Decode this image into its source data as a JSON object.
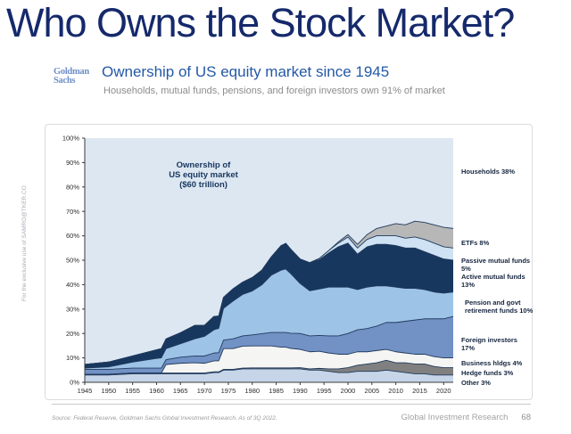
{
  "page": {
    "title": "Who Owns the Stock Market?",
    "header": {
      "logo_line1": "Goldman",
      "logo_line2": "Sachs",
      "heading": "Ownership of US equity market since 1945",
      "subheading": "Households, mutual funds, pensions, and foreign investors own 91% of market"
    },
    "watermark": "For the exclusive use of SAMRO@TKER.CO",
    "footer": {
      "source": "Source: Federal Reserve, Goldman Sachs Global Investment Research. As of 3Q 2022.",
      "brand": "Global Investment Research",
      "page_number": "68"
    }
  },
  "chart_data": {
    "type": "area",
    "stacked": true,
    "title_annotation": [
      "Ownership of",
      "US equity market",
      "($60 trillion)"
    ],
    "x": [
      1945,
      1950,
      1955,
      1960,
      1961,
      1962,
      1965,
      1968,
      1970,
      1972,
      1973,
      1974,
      1976,
      1978,
      1980,
      1982,
      1984,
      1986,
      1987,
      1988,
      1990,
      1992,
      1994,
      1996,
      1998,
      2000,
      2002,
      2004,
      2006,
      2008,
      2010,
      2012,
      2014,
      2016,
      2018,
      2020,
      2022
    ],
    "x_ticks": [
      {
        "value": 1945,
        "label": "1945"
      },
      {
        "value": 1950,
        "label": "1950"
      },
      {
        "value": 1955,
        "label": "1955"
      },
      {
        "value": 1960,
        "label": "1960"
      },
      {
        "value": 1965,
        "label": "1965"
      },
      {
        "value": 1970,
        "label": "1970"
      },
      {
        "value": 1975,
        "label": "1975"
      },
      {
        "value": 1980,
        "label": "1980"
      },
      {
        "value": 1985,
        "label": "1985"
      },
      {
        "value": 1990,
        "label": "1990"
      },
      {
        "value": 1995,
        "label": "1995"
      },
      {
        "value": 2000,
        "label": "2000"
      },
      {
        "value": 2005,
        "label": "2005"
      },
      {
        "value": 2010,
        "label": "2010"
      },
      {
        "value": 2015,
        "label": "2015"
      },
      {
        "value": 2020,
        "label": "2020"
      }
    ],
    "y_ticks": [
      {
        "value": 0,
        "label": "0%"
      },
      {
        "value": 10,
        "label": "10%"
      },
      {
        "value": 20,
        "label": "20%"
      },
      {
        "value": 30,
        "label": "30%"
      },
      {
        "value": 40,
        "label": "40%"
      },
      {
        "value": 50,
        "label": "50%"
      },
      {
        "value": 60,
        "label": "60%"
      },
      {
        "value": 70,
        "label": "70%"
      },
      {
        "value": 80,
        "label": "80%"
      },
      {
        "value": 90,
        "label": "90%"
      },
      {
        "value": 100,
        "label": "100%"
      }
    ],
    "y_axis": {
      "min": 0,
      "max": 100,
      "unit": "%"
    },
    "legend_position": "right",
    "grid": false,
    "outline_color": "#203a5c",
    "background_series": {
      "name": "Households",
      "label": "Households 38%",
      "share_2022": 38,
      "color": "#dde7f2"
    },
    "series": [
      {
        "name": "Other",
        "label": "Other 3%",
        "share_2022": 3,
        "color": "#c7d5e9",
        "values": [
          3,
          3,
          3.5,
          3.5,
          3.5,
          3.5,
          3.5,
          3.5,
          3.5,
          4,
          4,
          5,
          5,
          5.5,
          5.5,
          5.5,
          5.5,
          5.5,
          5.5,
          5.5,
          5.5,
          5,
          5,
          4.5,
          4,
          4,
          4.5,
          4.5,
          4.5,
          5,
          4.5,
          4,
          3.5,
          3.5,
          3,
          3,
          3
        ]
      },
      {
        "name": "Hedge funds",
        "label": "Hedge funds 3%",
        "share_2022": 3,
        "color": "#808080",
        "values": [
          0.3,
          0.3,
          0.3,
          0.3,
          0.3,
          0.3,
          0.3,
          0.3,
          0.3,
          0.3,
          0.3,
          0.3,
          0.3,
          0.3,
          0.4,
          0.4,
          0.4,
          0.4,
          0.4,
          0.4,
          0.5,
          0.5,
          0.7,
          1,
          1.5,
          2,
          2.5,
          3,
          3.5,
          4,
          3.5,
          4,
          4,
          4,
          3.5,
          3,
          3
        ]
      },
      {
        "name": "Business hldgs",
        "label": "Business hldgs 4%",
        "share_2022": 4,
        "color": "#f5f5f3",
        "values": [
          0,
          0,
          0,
          0,
          0,
          3.5,
          4,
          4.2,
          4,
          4.5,
          4.5,
          8.5,
          8.5,
          9,
          9,
          9,
          9,
          8.5,
          8.5,
          8,
          7.5,
          7,
          7,
          6.5,
          6,
          5.5,
          5.5,
          5,
          5,
          4.5,
          4.5,
          4,
          4,
          4,
          4,
          4,
          4
        ]
      },
      {
        "name": "Foreign investors",
        "label": "Foreign investors 17%",
        "share_2022": 17,
        "color": "#7291c5",
        "values": [
          2,
          2,
          2,
          2,
          2,
          2,
          2.5,
          2.8,
          3,
          3.2,
          3.3,
          3.5,
          4,
          4.2,
          4.5,
          5,
          5.5,
          6,
          6,
          6.2,
          6.5,
          6.5,
          6.5,
          7,
          7.5,
          8.5,
          9,
          9.5,
          10,
          11,
          12,
          13,
          14,
          14.5,
          15.5,
          16,
          17
        ]
      },
      {
        "name": "Pension and govt retirement funds",
        "label": "Pension and govt retirement funds 10%",
        "share_2022": 10,
        "color": "#9dc3e6",
        "values": [
          0.5,
          1,
          2.5,
          4,
          4.2,
          4.5,
          5.5,
          7,
          8,
          9.5,
          10,
          13,
          15.5,
          17,
          18,
          20,
          23.5,
          25.5,
          26,
          24.5,
          20.5,
          18.5,
          19,
          20,
          20,
          19,
          16.5,
          17,
          16.5,
          15,
          14.5,
          13.5,
          13,
          12,
          11,
          10.5,
          10
        ]
      },
      {
        "name": "Active mutual funds",
        "label": "Active mutual funds 13%",
        "share_2022": 13,
        "color": "#17375e",
        "values": [
          1.5,
          2,
          2.5,
          3.5,
          3.8,
          4,
          4.5,
          5.5,
          4.5,
          5.5,
          5,
          4.5,
          5,
          5,
          5.5,
          6,
          7.5,
          10,
          10.5,
          10,
          10,
          11.5,
          12,
          14,
          16.5,
          18,
          14.5,
          16.5,
          17,
          17,
          17,
          16.5,
          16.5,
          15.5,
          15,
          14,
          13
        ]
      },
      {
        "name": "Passive mutual funds",
        "label": "Passive mutual funds 5%",
        "share_2022": 5,
        "color": "#cfe2f3",
        "values": [
          0,
          0,
          0,
          0,
          0,
          0,
          0,
          0,
          0,
          0,
          0,
          0,
          0,
          0,
          0,
          0,
          0,
          0,
          0,
          0,
          0,
          0,
          0.5,
          1,
          1.5,
          2.5,
          2.5,
          3,
          3.5,
          3.5,
          4,
          4,
          4.5,
          5,
          5,
          5,
          5
        ]
      },
      {
        "name": "ETFs",
        "label": "ETFs 8%",
        "share_2022": 8,
        "color": "#b7b7b7",
        "values": [
          0,
          0,
          0,
          0,
          0,
          0,
          0,
          0,
          0,
          0,
          0,
          0,
          0,
          0,
          0,
          0,
          0,
          0,
          0,
          0,
          0,
          0,
          0,
          0,
          0.5,
          1,
          1.5,
          2,
          3,
          4,
          5,
          5.5,
          6.5,
          7,
          7.5,
          8,
          8
        ]
      }
    ]
  }
}
